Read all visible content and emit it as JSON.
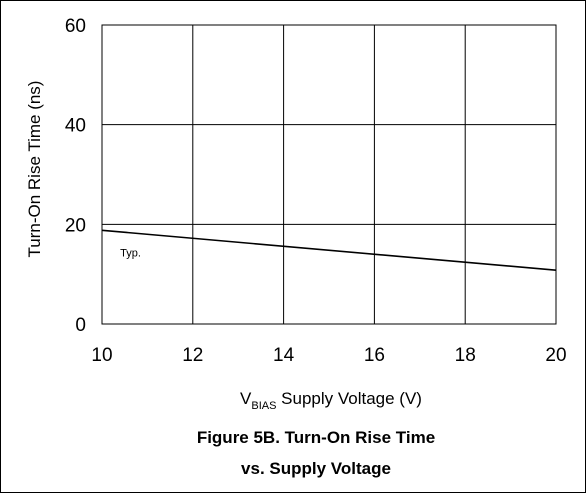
{
  "chart_data": {
    "type": "line",
    "title": "",
    "xlabel_prefix": "V",
    "xlabel_sub": "BIAS",
    "xlabel_rest": " Supply  Voltage (V)",
    "ylabel": "Turn-On Rise Time (ns)",
    "xlim": [
      10,
      20
    ],
    "ylim": [
      0,
      60
    ],
    "x_ticks": [
      "10",
      "12",
      "14",
      "16",
      "18",
      "20"
    ],
    "y_ticks": [
      "0",
      "20",
      "40",
      "60"
    ],
    "grid": true,
    "series": [
      {
        "name": "",
        "x": [
          10,
          20
        ],
        "y": [
          18.8,
          10.8
        ]
      }
    ],
    "annotations": [
      {
        "text": "Typ.",
        "x": 10.4,
        "y": 13.5
      }
    ]
  },
  "caption": {
    "line1": "Figure 5B. Turn-On Rise Time",
    "line2": "vs. Supply Voltage"
  },
  "colors": {
    "line": "#000000",
    "grid": "#000000",
    "background": "#ffffff"
  }
}
